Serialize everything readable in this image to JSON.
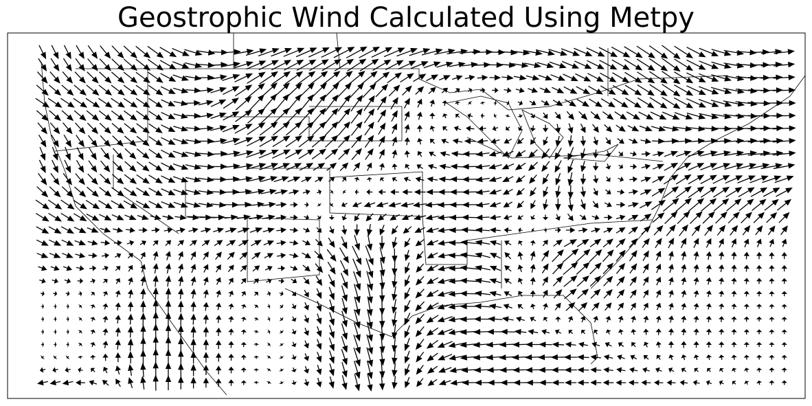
{
  "title": "Geostrophic Wind Calculated Using Metpy",
  "colors": {
    "arrows": "#000000",
    "borders": "#000000",
    "background": "#ffffff"
  },
  "map": {
    "projection": "Lambert conformal (CONUS)",
    "features": [
      "coastlines",
      "state-borders",
      "country-borders"
    ],
    "quiver": {
      "description": "geostrophic wind vectors on a regular grid",
      "coarse_field_rows_north_to_south": [
        [
          [
            0.3,
            -0.6
          ],
          [
            0.7,
            -0.5
          ],
          [
            0.9,
            0.3
          ],
          [
            0.9,
            0.5
          ],
          [
            0.9,
            0.1
          ],
          [
            0.8,
            -0.3
          ],
          [
            0.8,
            -0.6
          ],
          [
            0.9,
            0.1
          ]
        ],
        [
          [
            0.6,
            -0.4
          ],
          [
            0.6,
            -0.4
          ],
          [
            0.7,
            0.8
          ],
          [
            0.5,
            0.7
          ],
          [
            -0.1,
            0.1
          ],
          [
            0.5,
            -0.3
          ],
          [
            0.8,
            -0.5
          ],
          [
            1.0,
            0.0
          ]
        ],
        [
          [
            0.2,
            -0.6
          ],
          [
            0.6,
            -0.4
          ],
          [
            0.9,
            0.3
          ],
          [
            0.4,
            0.5
          ],
          [
            -0.7,
            0.0
          ],
          [
            -0.3,
            -0.6
          ],
          [
            0.6,
            0.3
          ],
          [
            1.0,
            0.1
          ]
        ],
        [
          [
            0.6,
            -0.4
          ],
          [
            0.6,
            -0.3
          ],
          [
            0.7,
            0.1
          ],
          [
            -0.5,
            -0.2
          ],
          [
            -0.7,
            0.0
          ],
          [
            0.1,
            -0.6
          ],
          [
            0.7,
            0.6
          ],
          [
            0.6,
            0.5
          ]
        ],
        [
          [
            0.5,
            -0.2
          ],
          [
            0.1,
            0.4
          ],
          [
            0.4,
            0.3
          ],
          [
            0.4,
            -0.9
          ],
          [
            -0.9,
            0.1
          ],
          [
            0.7,
            0.6
          ],
          [
            0.1,
            0.4
          ],
          [
            0.0,
            0.3
          ]
        ],
        [
          [
            0.1,
            0.0
          ],
          [
            0.0,
            0.6
          ],
          [
            0.1,
            0.1
          ],
          [
            0.2,
            -0.9
          ],
          [
            -0.9,
            0.0
          ],
          [
            0.5,
            0.4
          ],
          [
            0.1,
            0.3
          ],
          [
            0.0,
            0.2
          ]
        ],
        [
          [
            0.1,
            0.0
          ],
          [
            0.0,
            0.8
          ],
          [
            0.0,
            0.1
          ],
          [
            0.3,
            -0.9
          ],
          [
            -0.9,
            -0.1
          ],
          [
            -0.6,
            0.0
          ],
          [
            0.0,
            0.3
          ],
          [
            0.0,
            0.2
          ]
        ],
        [
          [
            -0.5,
            -0.1
          ],
          [
            0.0,
            0.7
          ],
          [
            0.0,
            0.1
          ],
          [
            0.2,
            -0.8
          ],
          [
            -0.7,
            0.0
          ],
          [
            -0.5,
            0.0
          ],
          [
            -0.4,
            0.0
          ],
          [
            0.0,
            0.2
          ]
        ]
      ]
    }
  }
}
